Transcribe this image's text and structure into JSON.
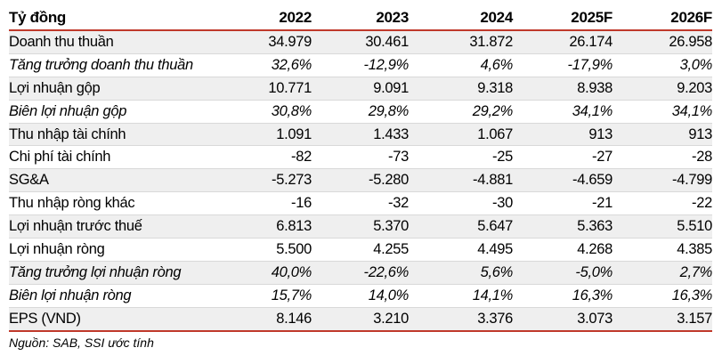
{
  "table": {
    "header": [
      "Tỷ đồng",
      "2022",
      "2023",
      "2024",
      "2025F",
      "2026F"
    ],
    "rows": [
      {
        "label": "Doanh thu thuần",
        "italic": false,
        "values": [
          "34.979",
          "30.461",
          "31.872",
          "26.174",
          "26.958"
        ]
      },
      {
        "label": "Tăng trưởng doanh thu thuần",
        "italic": true,
        "values": [
          "32,6%",
          "-12,9%",
          "4,6%",
          "-17,9%",
          "3,0%"
        ]
      },
      {
        "label": "Lợi nhuận gộp",
        "italic": false,
        "values": [
          "10.771",
          "9.091",
          "9.318",
          "8.938",
          "9.203"
        ]
      },
      {
        "label": "Biên lợi nhuận gộp",
        "italic": true,
        "values": [
          "30,8%",
          "29,8%",
          "29,2%",
          "34,1%",
          "34,1%"
        ]
      },
      {
        "label": "Thu nhập tài chính",
        "italic": false,
        "values": [
          "1.091",
          "1.433",
          "1.067",
          "913",
          "913"
        ]
      },
      {
        "label": "Chi phí tài chính",
        "italic": false,
        "values": [
          "-82",
          "-73",
          "-25",
          "-27",
          "-28"
        ]
      },
      {
        "label": "SG&A",
        "italic": false,
        "values": [
          "-5.273",
          "-5.280",
          "-4.881",
          "-4.659",
          "-4.799"
        ]
      },
      {
        "label": "Thu nhập ròng khác",
        "italic": false,
        "values": [
          "-16",
          "-32",
          "-30",
          "-21",
          "-22"
        ]
      },
      {
        "label": "Lợi nhuận trước thuế",
        "italic": false,
        "values": [
          "6.813",
          "5.370",
          "5.647",
          "5.363",
          "5.510"
        ]
      },
      {
        "label": "Lợi nhuận ròng",
        "italic": false,
        "values": [
          "5.500",
          "4.255",
          "4.495",
          "4.268",
          "4.385"
        ]
      },
      {
        "label": "Tăng trưởng lợi nhuận ròng",
        "italic": true,
        "values": [
          "40,0%",
          "-22,6%",
          "5,6%",
          "-5,0%",
          "2,7%"
        ]
      },
      {
        "label": "Biên lợi nhuận ròng",
        "italic": true,
        "values": [
          "15,7%",
          "14,0%",
          "14,1%",
          "16,3%",
          "16,3%"
        ]
      },
      {
        "label": "EPS (VND)",
        "italic": false,
        "values": [
          "8.146",
          "3.210",
          "3.376",
          "3.073",
          "3.157"
        ]
      }
    ]
  },
  "source": "Nguồn: SAB, SSI ước tính"
}
